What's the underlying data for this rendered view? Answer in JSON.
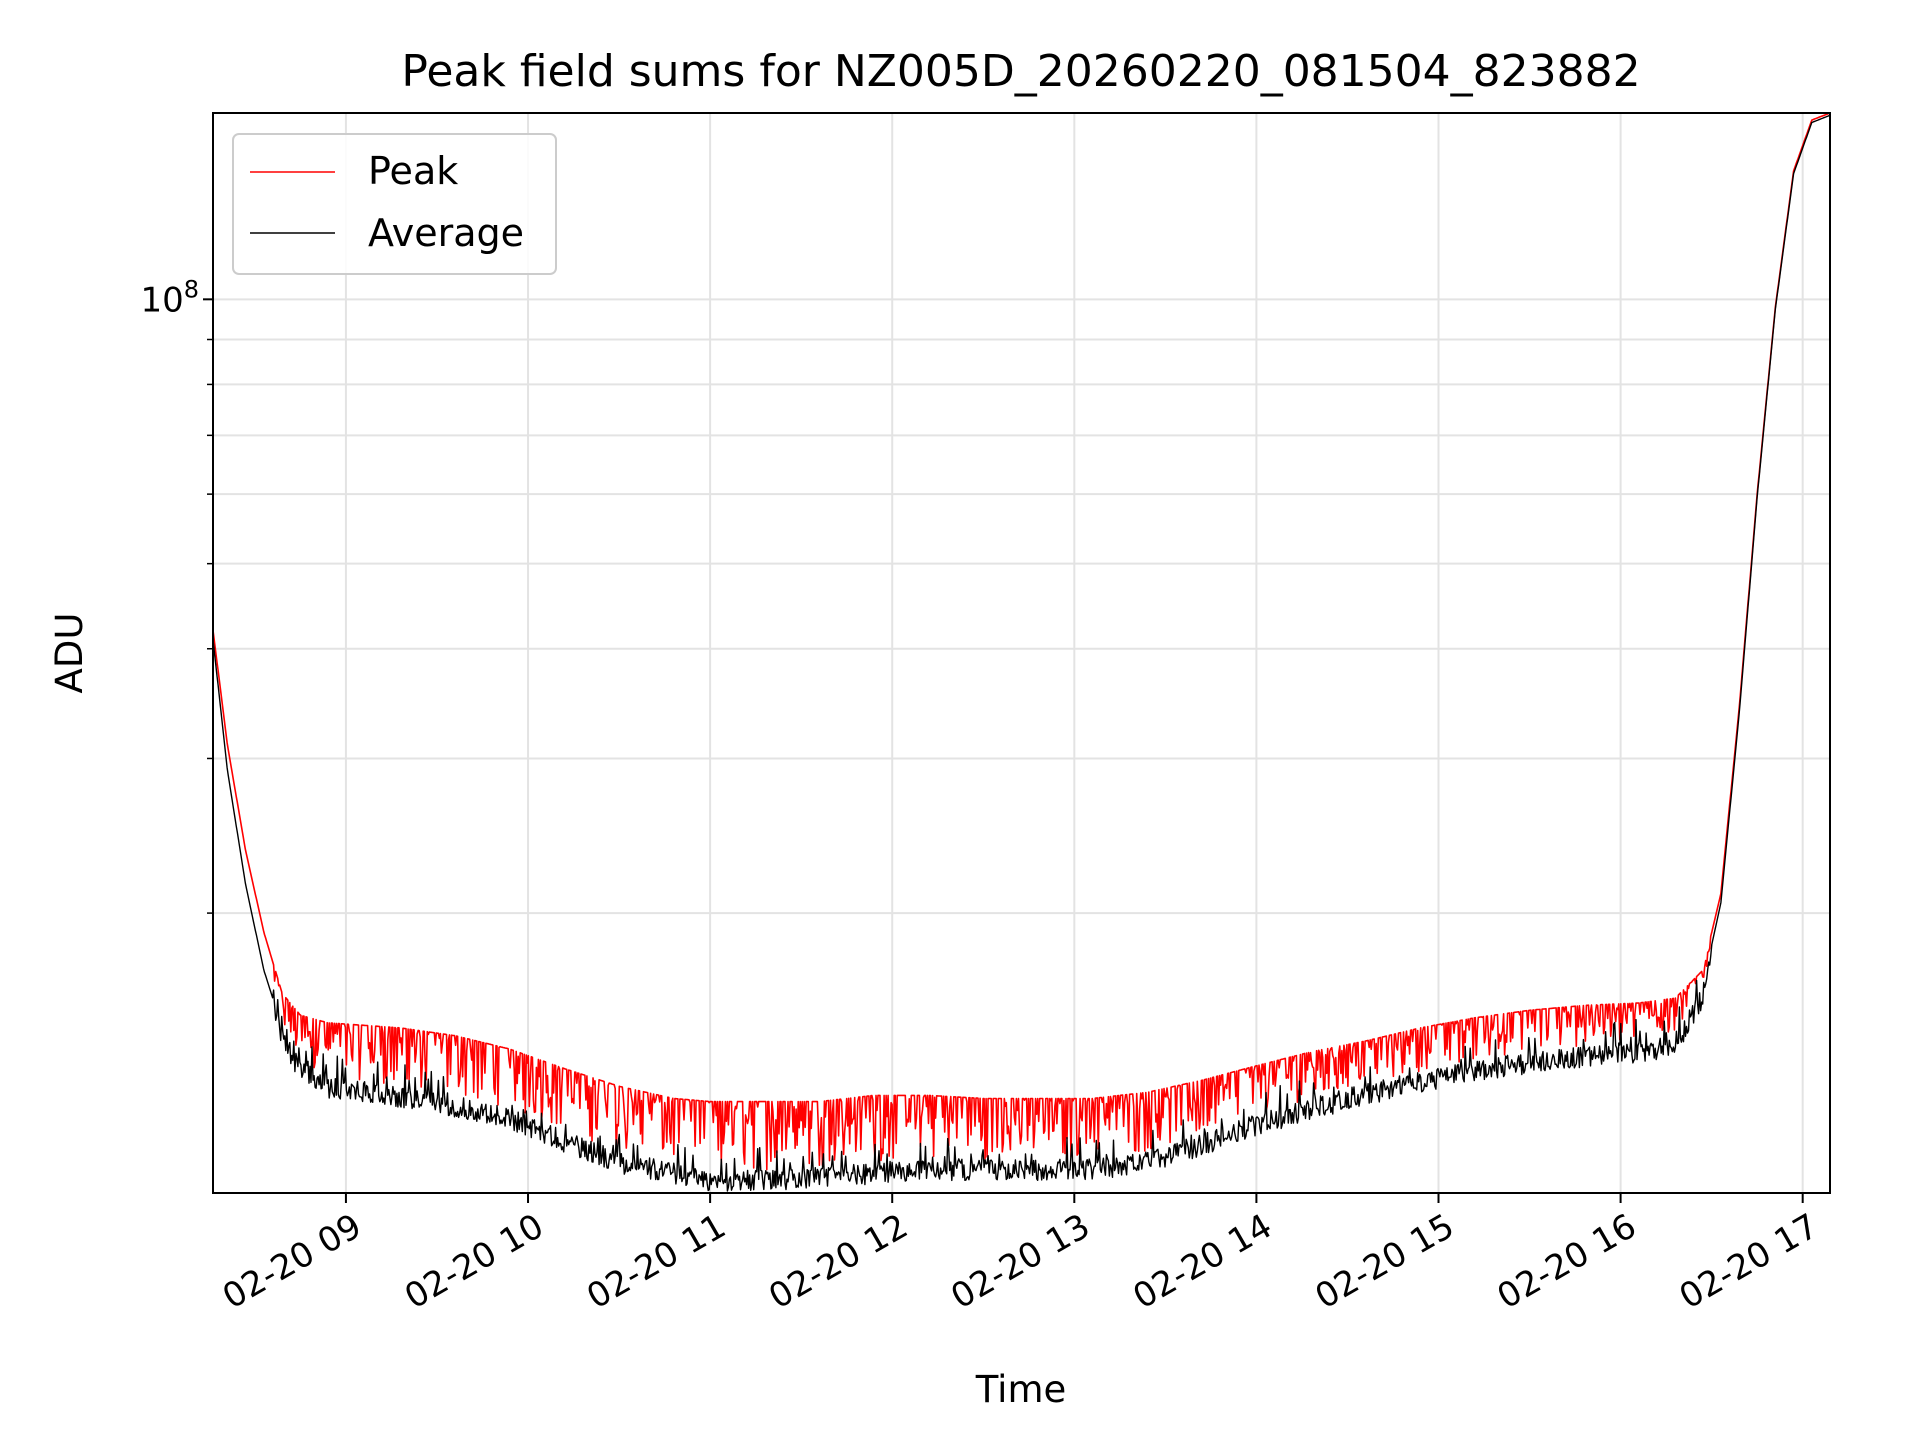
{
  "chart_data": {
    "type": "line",
    "title": "Peak field sums for NZ005D_20260220_081504_823882",
    "xlabel": "Time",
    "ylabel": "ADU",
    "yscale": "log",
    "grid": true,
    "legend_position": "upper-left",
    "xlim_hours": [
      8.27,
      17.15
    ],
    "ylim": [
      9600000,
      163000000
    ],
    "x_ticks": [
      {
        "hour": 9,
        "label": "02-20 09"
      },
      {
        "hour": 10,
        "label": "02-20 10"
      },
      {
        "hour": 11,
        "label": "02-20 11"
      },
      {
        "hour": 12,
        "label": "02-20 12"
      },
      {
        "hour": 13,
        "label": "02-20 13"
      },
      {
        "hour": 14,
        "label": "02-20 14"
      },
      {
        "hour": 15,
        "label": "02-20 15"
      },
      {
        "hour": 16,
        "label": "02-20 16"
      },
      {
        "hour": 17,
        "label": "02-20 17"
      }
    ],
    "y_major_ticks": [
      {
        "value": 100000000,
        "label_base": "10",
        "label_exp": "8"
      }
    ],
    "y_minor_ticks": [
      20000000,
      30000000,
      40000000,
      50000000,
      60000000,
      70000000,
      80000000,
      90000000
    ],
    "series": [
      {
        "name": "Peak",
        "color": "#ff0000",
        "hour": [
          8.27,
          8.35,
          8.45,
          8.55,
          8.65,
          8.75,
          8.9,
          9.1,
          9.3,
          9.6,
          9.9,
          10.2,
          10.5,
          10.8,
          11.0,
          11.3,
          11.6,
          11.9,
          12.2,
          12.5,
          12.8,
          13.1,
          13.4,
          13.7,
          14.0,
          14.3,
          14.6,
          14.9,
          15.2,
          15.5,
          15.8,
          16.1,
          16.3,
          16.45,
          16.55,
          16.65,
          16.75,
          16.85,
          16.95,
          17.05,
          17.15
        ],
        "values": [
          42000000,
          31000000,
          23500000,
          19000000,
          16200000,
          15300000,
          15000000,
          14900000,
          14800000,
          14500000,
          14000000,
          13300000,
          12700000,
          12300000,
          12200000,
          12200000,
          12200000,
          12400000,
          12400000,
          12300000,
          12300000,
          12300000,
          12500000,
          12900000,
          13400000,
          13900000,
          14300000,
          14800000,
          15200000,
          15500000,
          15700000,
          15800000,
          16000000,
          17200000,
          21000000,
          34000000,
          60000000,
          98000000,
          140000000,
          160000000,
          163000000
        ]
      },
      {
        "name": "Average",
        "color": "#000000",
        "hour": [
          8.27,
          8.35,
          8.45,
          8.55,
          8.65,
          8.75,
          8.9,
          9.1,
          9.3,
          9.6,
          9.9,
          10.2,
          10.5,
          10.8,
          11.0,
          11.3,
          11.6,
          11.9,
          12.2,
          12.5,
          12.8,
          13.1,
          13.4,
          13.7,
          14.0,
          14.3,
          14.6,
          14.9,
          15.2,
          15.5,
          15.8,
          16.1,
          16.3,
          16.45,
          16.55,
          16.65,
          16.75,
          16.85,
          16.95,
          17.05,
          17.15
        ],
        "values": [
          41000000,
          29000000,
          21500000,
          17200000,
          14800000,
          13600000,
          13000000,
          12900000,
          12700000,
          12400000,
          12000000,
          11300000,
          10700000,
          10400000,
          10200000,
          10200000,
          10300000,
          10400000,
          10500000,
          10500000,
          10500000,
          10500000,
          10700000,
          11200000,
          11800000,
          12300000,
          12800000,
          13200000,
          13600000,
          13900000,
          14100000,
          14300000,
          14500000,
          16500000,
          20500000,
          33500000,
          59500000,
          97500000,
          139000000,
          159000000,
          162000000
        ]
      }
    ]
  }
}
